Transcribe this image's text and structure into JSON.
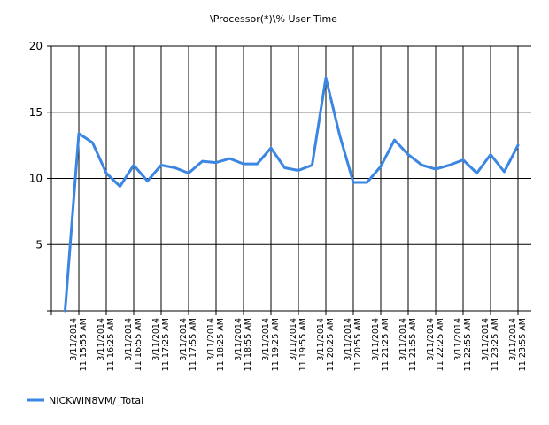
{
  "chart_data": {
    "type": "line",
    "title": "\\Processor(*)\\% User Time",
    "xlabel": "",
    "ylabel": "",
    "ylim": [
      0,
      20
    ],
    "y_ticks": [
      "",
      "5",
      "10",
      "15",
      "20"
    ],
    "y_tick_values": [
      0,
      5,
      10,
      15,
      20
    ],
    "grid": true,
    "legend_position": "bottom-left",
    "x_ticks": [
      {
        "date": "3/11/2014",
        "time": "11:15:55 AM"
      },
      {
        "date": "3/11/2014",
        "time": "11:16:25 AM"
      },
      {
        "date": "3/11/2014",
        "time": "11:16:55 AM"
      },
      {
        "date": "3/11/2014",
        "time": "11:17:25 AM"
      },
      {
        "date": "3/11/2014",
        "time": "11:17:55 AM"
      },
      {
        "date": "3/11/2014",
        "time": "11:18:25 AM"
      },
      {
        "date": "3/11/2014",
        "time": "11:18:55 AM"
      },
      {
        "date": "3/11/2014",
        "time": "11:19:25 AM"
      },
      {
        "date": "3/11/2014",
        "time": "11:19:55 AM"
      },
      {
        "date": "3/11/2014",
        "time": "11:20:25 AM"
      },
      {
        "date": "3/11/2014",
        "time": "11:20:55 AM"
      },
      {
        "date": "3/11/2014",
        "time": "11:21:25 AM"
      },
      {
        "date": "3/11/2014",
        "time": "11:21:55 AM"
      },
      {
        "date": "3/11/2014",
        "time": "11:22:25 AM"
      },
      {
        "date": "3/11/2014",
        "time": "11:22:55 AM"
      },
      {
        "date": "3/11/2014",
        "time": "11:23:25 AM"
      },
      {
        "date": "3/11/2014",
        "time": "11:23:55 AM"
      }
    ],
    "series": [
      {
        "name": "NICKWIN8VM/_Total",
        "color": "#3b86e2",
        "x": [
          "3/11/2014 11:15:40 AM",
          "3/11/2014 11:15:55 AM",
          "3/11/2014 11:16:10 AM",
          "3/11/2014 11:16:25 AM",
          "3/11/2014 11:16:40 AM",
          "3/11/2014 11:16:55 AM",
          "3/11/2014 11:17:10 AM",
          "3/11/2014 11:17:25 AM",
          "3/11/2014 11:17:40 AM",
          "3/11/2014 11:17:55 AM",
          "3/11/2014 11:18:10 AM",
          "3/11/2014 11:18:25 AM",
          "3/11/2014 11:18:40 AM",
          "3/11/2014 11:18:55 AM",
          "3/11/2014 11:19:10 AM",
          "3/11/2014 11:19:25 AM",
          "3/11/2014 11:19:40 AM",
          "3/11/2014 11:19:55 AM",
          "3/11/2014 11:20:10 AM",
          "3/11/2014 11:20:25 AM",
          "3/11/2014 11:20:40 AM",
          "3/11/2014 11:20:55 AM",
          "3/11/2014 11:21:10 AM",
          "3/11/2014 11:21:25 AM",
          "3/11/2014 11:21:40 AM",
          "3/11/2014 11:21:55 AM",
          "3/11/2014 11:22:10 AM",
          "3/11/2014 11:22:25 AM",
          "3/11/2014 11:22:40 AM",
          "3/11/2014 11:22:55 AM",
          "3/11/2014 11:23:10 AM",
          "3/11/2014 11:23:25 AM",
          "3/11/2014 11:23:40 AM",
          "3/11/2014 11:23:55 AM"
        ],
        "values": [
          0,
          13.4,
          12.7,
          10.4,
          9.4,
          11.0,
          9.8,
          11.0,
          10.8,
          10.4,
          11.3,
          11.2,
          11.5,
          11.1,
          11.1,
          12.3,
          10.8,
          10.6,
          11.0,
          17.6,
          13.3,
          9.7,
          9.7,
          10.9,
          12.9,
          11.8,
          11.0,
          10.7,
          11.0,
          11.4,
          10.4,
          11.8,
          10.5,
          12.5
        ]
      }
    ]
  }
}
